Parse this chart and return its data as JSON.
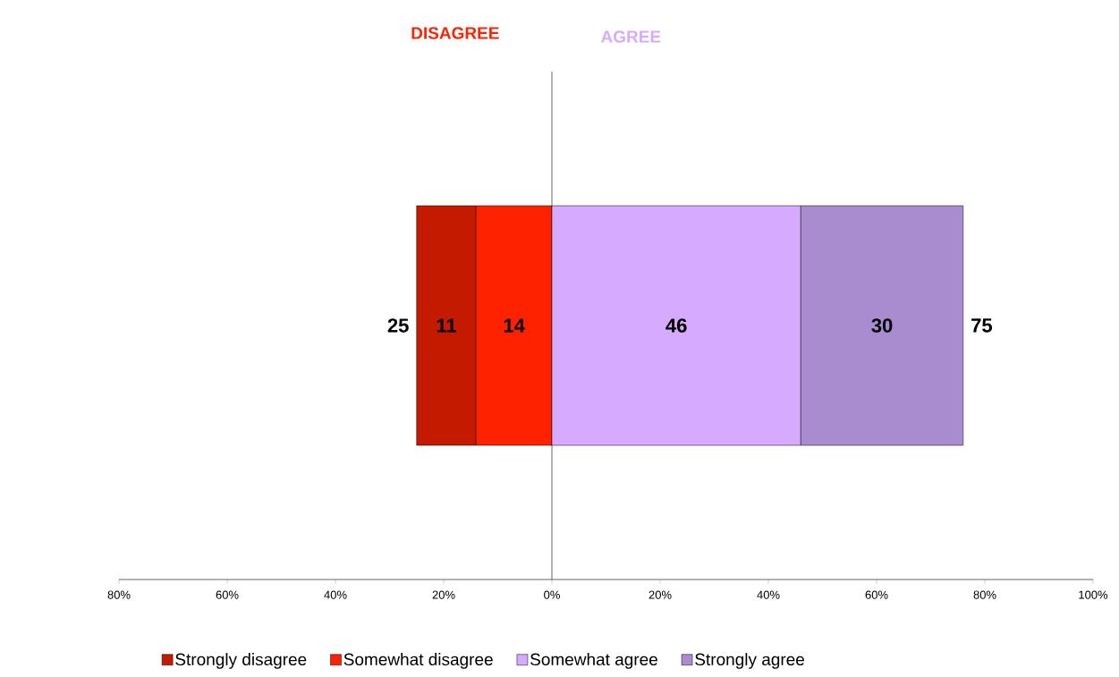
{
  "chart_data": {
    "type": "bar",
    "orientation": "horizontal",
    "categories": [
      null
    ],
    "series": [
      {
        "name": "Somewhat disagree",
        "color": "#ff2200",
        "values": [
          14
        ],
        "base": [
          -14
        ],
        "value_labels": [
          "14"
        ]
      },
      {
        "name": "Strongly disagree",
        "color": "#c41a00",
        "values": [
          11
        ],
        "base": [
          -25
        ],
        "value_labels": [
          "11"
        ]
      },
      {
        "name": "Somewhat agree",
        "color": "#d5aaff",
        "values": [
          46
        ],
        "base": [
          0
        ],
        "value_labels": [
          "46"
        ]
      },
      {
        "name": "Strongly agree",
        "color": "#a98cd0",
        "values": [
          30
        ],
        "base": [
          46
        ],
        "value_labels": [
          "30"
        ]
      }
    ],
    "annotations": [
      "DISAGREE",
      "AGREE",
      {
        "text": "25",
        "x": -25
      },
      {
        "text": "75",
        "x": 76
      }
    ],
    "xlim": [
      -80,
      100
    ],
    "xticks": [
      {
        "value": -80,
        "label": "80%"
      },
      {
        "value": -60,
        "label": "60%"
      },
      {
        "value": -40,
        "label": "40%"
      },
      {
        "value": -20,
        "label": "20%"
      },
      {
        "value": 0,
        "label": "0%"
      },
      {
        "value": 20,
        "label": "20%"
      },
      {
        "value": 40,
        "label": "40%"
      },
      {
        "value": 60,
        "label": "60%"
      },
      {
        "value": 80,
        "label": "80%"
      },
      {
        "value": 100,
        "label": "100%"
      }
    ],
    "legend": "bottom"
  }
}
